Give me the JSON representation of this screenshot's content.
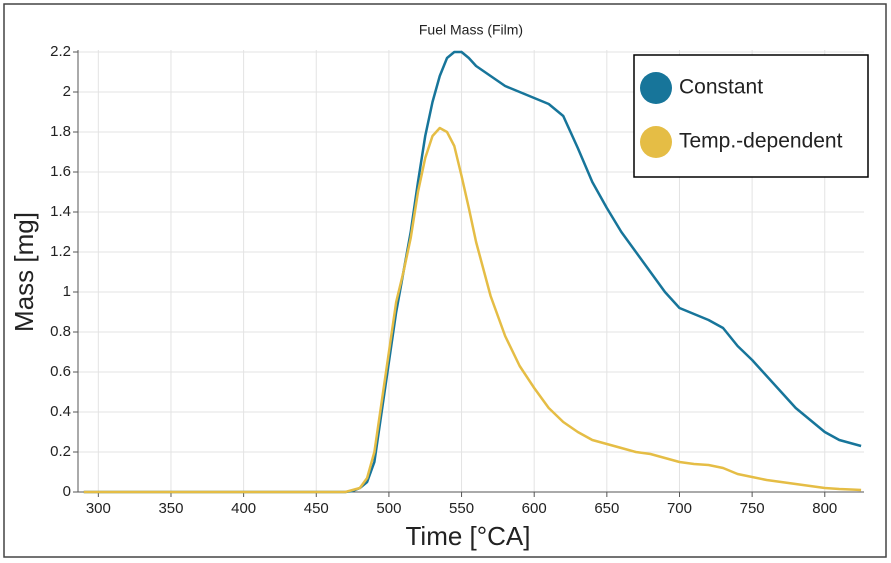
{
  "chart_data": {
    "type": "line",
    "title": "Fuel Mass (Film)",
    "x_label": "Time [°CA]",
    "y_label": "Mass [mg]",
    "x": [
      290,
      470,
      475,
      480,
      485,
      490,
      495,
      500,
      505,
      510,
      515,
      520,
      525,
      530,
      535,
      540,
      545,
      550,
      555,
      560,
      570,
      580,
      590,
      600,
      610,
      620,
      630,
      640,
      650,
      660,
      670,
      680,
      690,
      700,
      710,
      720,
      730,
      740,
      750,
      760,
      770,
      780,
      790,
      800,
      810,
      820,
      825
    ],
    "series": [
      {
        "name": "Constant",
        "color": "#17759a",
        "values": [
          0,
          0,
          0.005,
          0.02,
          0.05,
          0.15,
          0.4,
          0.65,
          0.9,
          1.1,
          1.3,
          1.55,
          1.78,
          1.95,
          2.08,
          2.17,
          2.2,
          2.2,
          2.17,
          2.13,
          2.08,
          2.03,
          2.0,
          1.97,
          1.94,
          1.88,
          1.72,
          1.55,
          1.42,
          1.3,
          1.2,
          1.1,
          1.0,
          0.92,
          0.89,
          0.86,
          0.82,
          0.73,
          0.66,
          0.58,
          0.5,
          0.42,
          0.36,
          0.3,
          0.26,
          0.24,
          0.23
        ]
      },
      {
        "name": "Temp.-dependent",
        "color": "#e5bd45",
        "values": [
          0,
          0,
          0.01,
          0.02,
          0.07,
          0.2,
          0.45,
          0.7,
          0.95,
          1.1,
          1.27,
          1.5,
          1.67,
          1.78,
          1.82,
          1.8,
          1.73,
          1.58,
          1.42,
          1.25,
          0.98,
          0.78,
          0.63,
          0.52,
          0.42,
          0.35,
          0.3,
          0.26,
          0.24,
          0.22,
          0.2,
          0.19,
          0.17,
          0.15,
          0.14,
          0.135,
          0.12,
          0.09,
          0.075,
          0.06,
          0.05,
          0.04,
          0.03,
          0.02,
          0.015,
          0.012,
          0.01
        ]
      }
    ],
    "xlim": [
      286,
      827
    ],
    "ylim": [
      0,
      2.2
    ],
    "xticks": [
      300,
      350,
      400,
      450,
      500,
      550,
      600,
      650,
      700,
      750,
      800
    ],
    "yticks": [
      0,
      0.2,
      0.4,
      0.6,
      0.8,
      1,
      1.2,
      1.4,
      1.6,
      1.8,
      2,
      2.2
    ],
    "grid": true,
    "legend": "upper right"
  }
}
